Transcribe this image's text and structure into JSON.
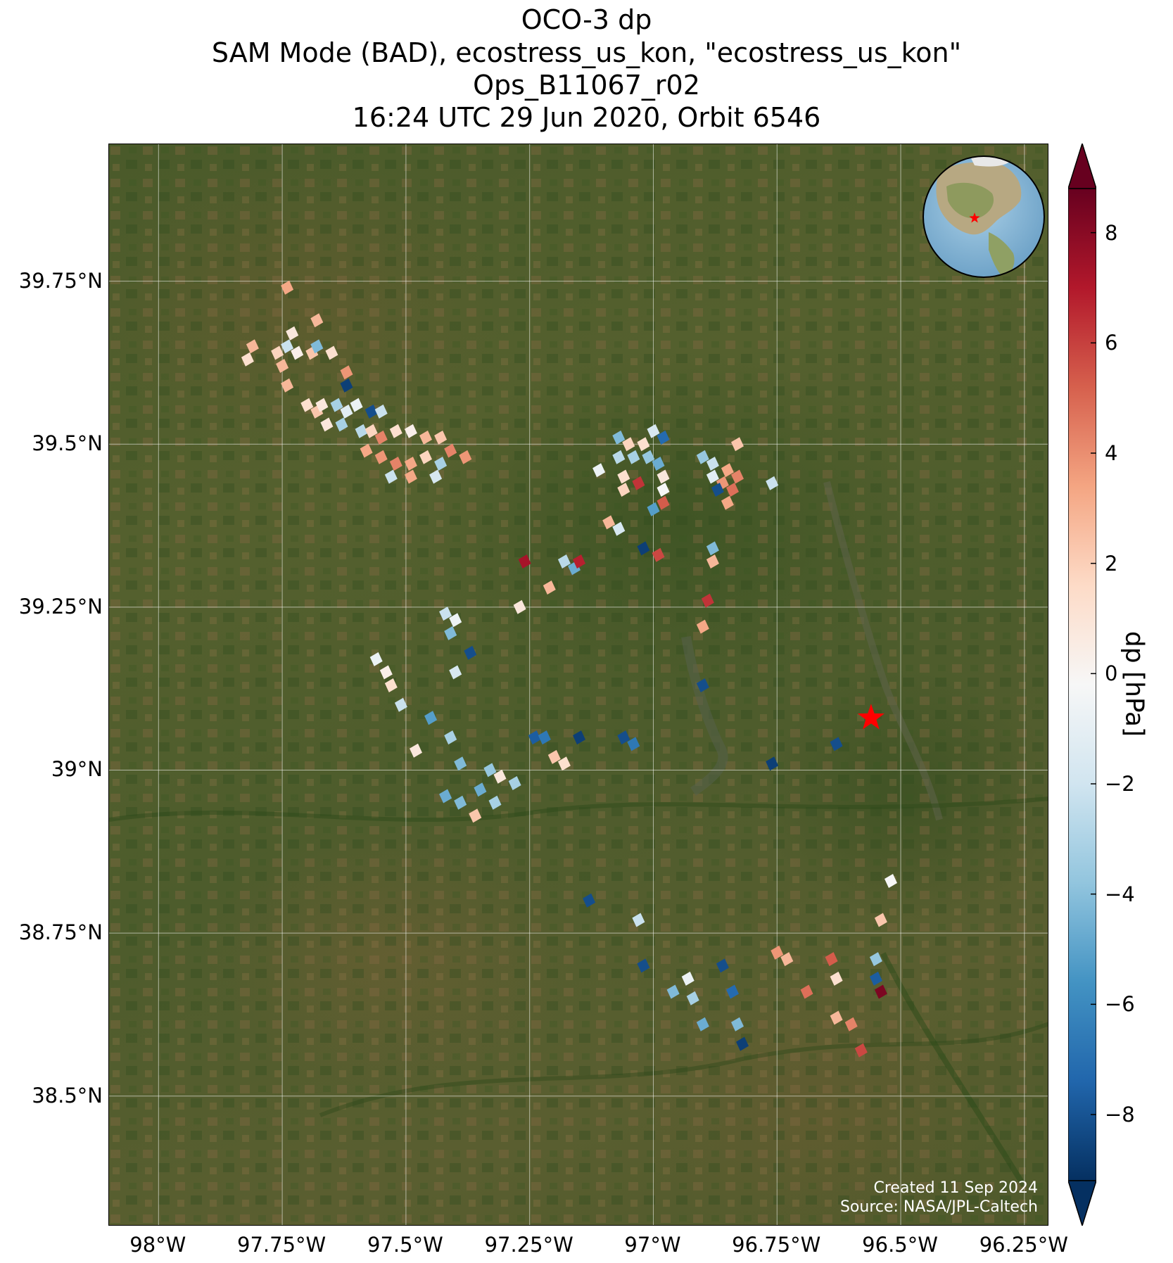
{
  "title": {
    "line1": "OCO-3 dp",
    "line2": "SAM Mode (BAD), ecostress_us_kon, \"ecostress_us_kon\"",
    "line3": "Ops_B11067_r02",
    "line4": "16:24 UTC 29 Jun 2020, Orbit 6546"
  },
  "map": {
    "lon_range": [
      -98.1,
      -96.2
    ],
    "lat_range": [
      38.3,
      39.96
    ],
    "lat_ticks": [
      {
        "value": 39.75,
        "label": "39.75°N"
      },
      {
        "value": 39.5,
        "label": "39.5°N"
      },
      {
        "value": 39.25,
        "label": "39.25°N"
      },
      {
        "value": 39.0,
        "label": "39°N"
      },
      {
        "value": 38.75,
        "label": "38.75°N"
      },
      {
        "value": 38.5,
        "label": "38.5°N"
      }
    ],
    "lon_ticks": [
      {
        "value": -98.0,
        "label": "98°W"
      },
      {
        "value": -97.75,
        "label": "97.75°W"
      },
      {
        "value": -97.5,
        "label": "97.5°W"
      },
      {
        "value": -97.25,
        "label": "97.25°W"
      },
      {
        "value": -97.0,
        "label": "97°W"
      },
      {
        "value": -96.75,
        "label": "96.75°W"
      },
      {
        "value": -96.5,
        "label": "96.5°W"
      },
      {
        "value": -96.25,
        "label": "96.25°W"
      }
    ],
    "target_site": {
      "lon": -96.56,
      "lat": 39.08,
      "color": "#ff0000"
    },
    "soundings": [
      {
        "lon": -97.74,
        "lat": 39.74,
        "dp": 3.5
      },
      {
        "lon": -97.68,
        "lat": 39.69,
        "dp": 3.0
      },
      {
        "lon": -97.73,
        "lat": 39.67,
        "dp": 1.0
      },
      {
        "lon": -97.81,
        "lat": 39.65,
        "dp": 3.0
      },
      {
        "lon": -97.82,
        "lat": 39.63,
        "dp": 1.5
      },
      {
        "lon": -97.76,
        "lat": 39.64,
        "dp": 2.0
      },
      {
        "lon": -97.75,
        "lat": 39.62,
        "dp": 3.0
      },
      {
        "lon": -97.72,
        "lat": 39.64,
        "dp": 0.5
      },
      {
        "lon": -97.69,
        "lat": 39.64,
        "dp": 2.5
      },
      {
        "lon": -97.68,
        "lat": 39.65,
        "dp": -4.0
      },
      {
        "lon": -97.74,
        "lat": 39.65,
        "dp": -2.0
      },
      {
        "lon": -97.65,
        "lat": 39.64,
        "dp": 1.5
      },
      {
        "lon": -97.62,
        "lat": 39.61,
        "dp": 4.0
      },
      {
        "lon": -97.62,
        "lat": 39.59,
        "dp": -8.5
      },
      {
        "lon": -97.74,
        "lat": 39.59,
        "dp": 3.0
      },
      {
        "lon": -97.7,
        "lat": 39.56,
        "dp": 1.5
      },
      {
        "lon": -97.68,
        "lat": 39.55,
        "dp": 2.5
      },
      {
        "lon": -97.67,
        "lat": 39.56,
        "dp": 1.0
      },
      {
        "lon": -97.64,
        "lat": 39.56,
        "dp": -3.0
      },
      {
        "lon": -97.62,
        "lat": 39.55,
        "dp": -1.0
      },
      {
        "lon": -97.6,
        "lat": 39.56,
        "dp": -0.5
      },
      {
        "lon": -97.57,
        "lat": 39.55,
        "dp": -8.0
      },
      {
        "lon": -97.55,
        "lat": 39.55,
        "dp": -2.0
      },
      {
        "lon": -97.66,
        "lat": 39.53,
        "dp": 1.0
      },
      {
        "lon": -97.63,
        "lat": 39.53,
        "dp": -3.0
      },
      {
        "lon": -97.59,
        "lat": 39.52,
        "dp": -2.5
      },
      {
        "lon": -97.57,
        "lat": 39.52,
        "dp": 2.0
      },
      {
        "lon": -97.55,
        "lat": 39.51,
        "dp": 4.5
      },
      {
        "lon": -97.52,
        "lat": 39.52,
        "dp": 1.5
      },
      {
        "lon": -97.49,
        "lat": 39.52,
        "dp": 0.5
      },
      {
        "lon": -97.46,
        "lat": 39.51,
        "dp": 3.0
      },
      {
        "lon": -97.43,
        "lat": 39.51,
        "dp": 2.5
      },
      {
        "lon": -97.41,
        "lat": 39.49,
        "dp": 4.5
      },
      {
        "lon": -97.58,
        "lat": 39.49,
        "dp": 3.5
      },
      {
        "lon": -97.55,
        "lat": 39.48,
        "dp": 4.0
      },
      {
        "lon": -97.52,
        "lat": 39.47,
        "dp": 4.5
      },
      {
        "lon": -97.49,
        "lat": 39.47,
        "dp": 3.5
      },
      {
        "lon": -97.46,
        "lat": 39.48,
        "dp": 2.0
      },
      {
        "lon": -97.43,
        "lat": 39.47,
        "dp": -3.0
      },
      {
        "lon": -97.38,
        "lat": 39.48,
        "dp": 4.0
      },
      {
        "lon": -97.53,
        "lat": 39.45,
        "dp": -2.0
      },
      {
        "lon": -97.49,
        "lat": 39.45,
        "dp": 3.5
      },
      {
        "lon": -97.44,
        "lat": 39.45,
        "dp": -1.5
      },
      {
        "lon": -97.07,
        "lat": 39.51,
        "dp": -4.0
      },
      {
        "lon": -97.05,
        "lat": 39.5,
        "dp": 2.0
      },
      {
        "lon": -97.02,
        "lat": 39.5,
        "dp": 1.5
      },
      {
        "lon": -97.0,
        "lat": 39.52,
        "dp": -1.5
      },
      {
        "lon": -96.98,
        "lat": 39.51,
        "dp": -7.0
      },
      {
        "lon": -97.07,
        "lat": 39.48,
        "dp": -2.5
      },
      {
        "lon": -97.04,
        "lat": 39.48,
        "dp": -3.0
      },
      {
        "lon": -97.01,
        "lat": 39.48,
        "dp": -3.5
      },
      {
        "lon": -96.99,
        "lat": 39.47,
        "dp": -4.5
      },
      {
        "lon": -97.11,
        "lat": 39.46,
        "dp": -0.5
      },
      {
        "lon": -97.06,
        "lat": 39.45,
        "dp": 1.5
      },
      {
        "lon": -97.03,
        "lat": 39.44,
        "dp": 6.5
      },
      {
        "lon": -96.98,
        "lat": 39.45,
        "dp": 1.0
      },
      {
        "lon": -97.06,
        "lat": 39.43,
        "dp": 2.0
      },
      {
        "lon": -96.98,
        "lat": 39.43,
        "dp": 0.0
      },
      {
        "lon": -96.98,
        "lat": 39.41,
        "dp": 5.5
      },
      {
        "lon": -97.0,
        "lat": 39.4,
        "dp": -5.0
      },
      {
        "lon": -96.9,
        "lat": 39.48,
        "dp": -3.5
      },
      {
        "lon": -96.88,
        "lat": 39.47,
        "dp": -2.0
      },
      {
        "lon": -96.85,
        "lat": 39.46,
        "dp": 3.5
      },
      {
        "lon": -96.88,
        "lat": 39.45,
        "dp": -1.0
      },
      {
        "lon": -96.86,
        "lat": 39.44,
        "dp": 4.0
      },
      {
        "lon": -96.83,
        "lat": 39.45,
        "dp": 4.5
      },
      {
        "lon": -96.87,
        "lat": 39.43,
        "dp": -8.0
      },
      {
        "lon": -96.84,
        "lat": 39.43,
        "dp": 5.0
      },
      {
        "lon": -96.85,
        "lat": 39.41,
        "dp": 3.5
      },
      {
        "lon": -96.83,
        "lat": 39.5,
        "dp": 2.5
      },
      {
        "lon": -96.76,
        "lat": 39.44,
        "dp": -2.0
      },
      {
        "lon": -97.09,
        "lat": 39.38,
        "dp": 3.0
      },
      {
        "lon": -97.07,
        "lat": 39.37,
        "dp": -1.5
      },
      {
        "lon": -97.02,
        "lat": 39.34,
        "dp": -8.5
      },
      {
        "lon": -96.99,
        "lat": 39.33,
        "dp": 6.0
      },
      {
        "lon": -96.88,
        "lat": 39.34,
        "dp": -4.0
      },
      {
        "lon": -96.88,
        "lat": 39.32,
        "dp": 3.0
      },
      {
        "lon": -97.26,
        "lat": 39.32,
        "dp": 7.5
      },
      {
        "lon": -97.18,
        "lat": 39.32,
        "dp": -2.5
      },
      {
        "lon": -97.16,
        "lat": 39.31,
        "dp": -4.5
      },
      {
        "lon": -97.15,
        "lat": 39.32,
        "dp": 7.0
      },
      {
        "lon": -97.21,
        "lat": 39.28,
        "dp": 3.0
      },
      {
        "lon": -97.27,
        "lat": 39.25,
        "dp": 1.0
      },
      {
        "lon": -96.89,
        "lat": 39.26,
        "dp": 6.5
      },
      {
        "lon": -96.9,
        "lat": 39.22,
        "dp": 3.5
      },
      {
        "lon": -97.42,
        "lat": 39.24,
        "dp": -2.0
      },
      {
        "lon": -97.4,
        "lat": 39.23,
        "dp": -0.5
      },
      {
        "lon": -97.41,
        "lat": 39.21,
        "dp": -4.0
      },
      {
        "lon": -97.37,
        "lat": 39.18,
        "dp": -8.0
      },
      {
        "lon": -97.4,
        "lat": 39.15,
        "dp": -1.5
      },
      {
        "lon": -97.56,
        "lat": 39.17,
        "dp": -0.5
      },
      {
        "lon": -97.54,
        "lat": 39.15,
        "dp": 0.5
      },
      {
        "lon": -97.53,
        "lat": 39.13,
        "dp": 1.5
      },
      {
        "lon": -97.51,
        "lat": 39.1,
        "dp": -2.0
      },
      {
        "lon": -97.45,
        "lat": 39.08,
        "dp": -5.0
      },
      {
        "lon": -97.48,
        "lat": 39.03,
        "dp": 1.0
      },
      {
        "lon": -97.41,
        "lat": 39.05,
        "dp": -3.0
      },
      {
        "lon": -97.39,
        "lat": 39.01,
        "dp": -4.0
      },
      {
        "lon": -97.33,
        "lat": 39.0,
        "dp": -3.5
      },
      {
        "lon": -97.31,
        "lat": 38.99,
        "dp": 1.0
      },
      {
        "lon": -97.28,
        "lat": 38.98,
        "dp": -3.0
      },
      {
        "lon": -97.35,
        "lat": 38.97,
        "dp": -4.5
      },
      {
        "lon": -97.32,
        "lat": 38.95,
        "dp": -3.0
      },
      {
        "lon": -97.42,
        "lat": 38.96,
        "dp": -4.5
      },
      {
        "lon": -97.39,
        "lat": 38.95,
        "dp": -4.0
      },
      {
        "lon": -97.36,
        "lat": 38.93,
        "dp": 2.5
      },
      {
        "lon": -97.24,
        "lat": 39.05,
        "dp": -7.5
      },
      {
        "lon": -97.22,
        "lat": 39.05,
        "dp": -6.5
      },
      {
        "lon": -97.15,
        "lat": 39.05,
        "dp": -8.5
      },
      {
        "lon": -97.2,
        "lat": 39.02,
        "dp": 2.5
      },
      {
        "lon": -97.18,
        "lat": 39.01,
        "dp": 1.5
      },
      {
        "lon": -97.06,
        "lat": 39.05,
        "dp": -8.0
      },
      {
        "lon": -97.04,
        "lat": 39.04,
        "dp": -6.5
      },
      {
        "lon": -96.9,
        "lat": 39.13,
        "dp": -8.0
      },
      {
        "lon": -96.76,
        "lat": 39.01,
        "dp": -8.5
      },
      {
        "lon": -96.63,
        "lat": 39.04,
        "dp": -8.0
      },
      {
        "lon": -96.52,
        "lat": 38.83,
        "dp": 0.0
      },
      {
        "lon": -96.54,
        "lat": 38.77,
        "dp": 2.5
      },
      {
        "lon": -97.13,
        "lat": 38.8,
        "dp": -8.0
      },
      {
        "lon": -97.03,
        "lat": 38.77,
        "dp": -2.0
      },
      {
        "lon": -97.02,
        "lat": 38.7,
        "dp": -8.0
      },
      {
        "lon": -96.96,
        "lat": 38.66,
        "dp": -4.0
      },
      {
        "lon": -96.93,
        "lat": 38.68,
        "dp": -0.5
      },
      {
        "lon": -96.92,
        "lat": 38.65,
        "dp": -3.0
      },
      {
        "lon": -96.9,
        "lat": 38.61,
        "dp": -4.5
      },
      {
        "lon": -96.86,
        "lat": 38.7,
        "dp": -8.0
      },
      {
        "lon": -96.84,
        "lat": 38.66,
        "dp": -7.0
      },
      {
        "lon": -96.83,
        "lat": 38.61,
        "dp": -4.0
      },
      {
        "lon": -96.82,
        "lat": 38.58,
        "dp": -8.5
      },
      {
        "lon": -96.75,
        "lat": 38.72,
        "dp": 4.0
      },
      {
        "lon": -96.73,
        "lat": 38.71,
        "dp": 3.0
      },
      {
        "lon": -96.69,
        "lat": 38.66,
        "dp": 5.0
      },
      {
        "lon": -96.64,
        "lat": 38.71,
        "dp": 5.5
      },
      {
        "lon": -96.63,
        "lat": 38.68,
        "dp": 1.5
      },
      {
        "lon": -96.63,
        "lat": 38.62,
        "dp": 3.0
      },
      {
        "lon": -96.6,
        "lat": 38.61,
        "dp": 4.5
      },
      {
        "lon": -96.58,
        "lat": 38.57,
        "dp": 6.0
      },
      {
        "lon": -96.55,
        "lat": 38.71,
        "dp": -3.5
      },
      {
        "lon": -96.55,
        "lat": 38.68,
        "dp": -7.5
      },
      {
        "lon": -96.54,
        "lat": 38.66,
        "dp": 8.5
      }
    ]
  },
  "inset_globe": {
    "marker_color": "#ff0000"
  },
  "credits": {
    "created": "Created 11 Sep 2024",
    "source": "Source: NASA/JPL-Caltech"
  },
  "colorbar": {
    "label": "dp [hPa]",
    "min": -9.2,
    "max": 8.8,
    "ticks": [
      {
        "value": 8,
        "label": "8"
      },
      {
        "value": 6,
        "label": "6"
      },
      {
        "value": 4,
        "label": "4"
      },
      {
        "value": 2,
        "label": "2"
      },
      {
        "value": 0,
        "label": "0"
      },
      {
        "value": -2,
        "label": "−2"
      },
      {
        "value": -4,
        "label": "−4"
      },
      {
        "value": -6,
        "label": "−6"
      },
      {
        "value": -8,
        "label": "−8"
      }
    ],
    "colormap": [
      "#053061",
      "#2166ac",
      "#4393c3",
      "#92c5de",
      "#d1e5f0",
      "#f7f7f7",
      "#fddbc7",
      "#f4a582",
      "#d6604d",
      "#b2182b",
      "#67001f"
    ]
  }
}
